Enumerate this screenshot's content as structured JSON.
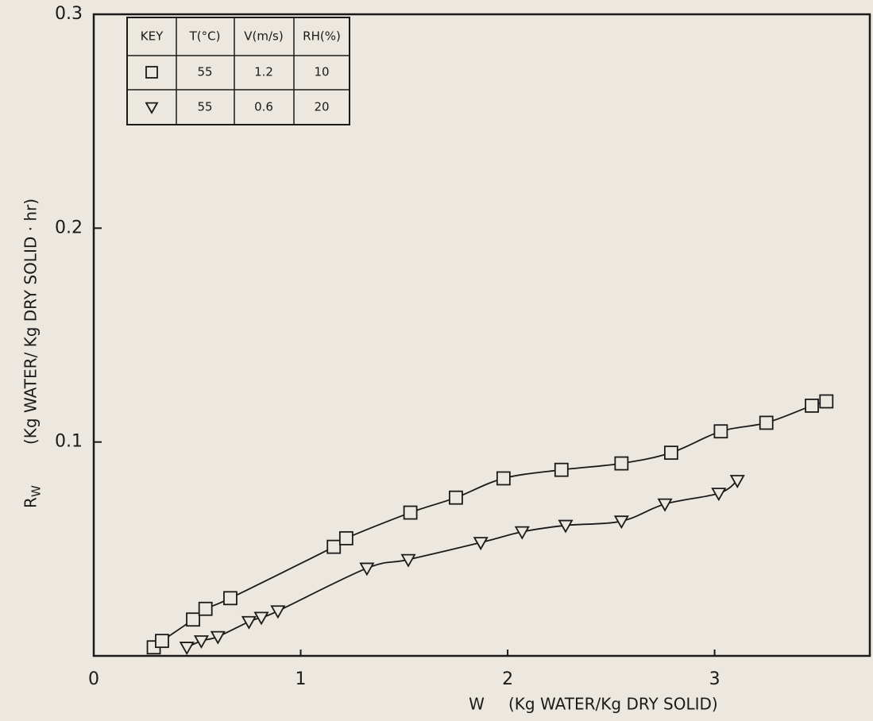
{
  "chart_data": {
    "type": "line",
    "x_symbol": "W",
    "x_label": "(Kg WATER/Kg DRY SOLID)",
    "y_symbol": "R",
    "y_symbol_sub": "W",
    "y_label": "(Kg WATER/ Kg DRY SOLID · hr)",
    "xlim": [
      0,
      3.75
    ],
    "xticks": [
      0,
      1,
      2,
      3
    ],
    "ylim": [
      0,
      0.3
    ],
    "yticks": [
      0.1,
      0.2,
      0.3
    ],
    "grid": false,
    "series": [
      {
        "marker": "square",
        "color": "#1a1a1a",
        "x": [
          0.29,
          0.33,
          0.48,
          0.54,
          0.66,
          1.16,
          1.22,
          1.53,
          1.75,
          1.98,
          2.26,
          2.55,
          2.79,
          3.03,
          3.25,
          3.47,
          3.54
        ],
        "values": [
          0.004,
          0.007,
          0.017,
          0.022,
          0.027,
          0.051,
          0.055,
          0.067,
          0.074,
          0.083,
          0.087,
          0.09,
          0.095,
          0.105,
          0.109,
          0.117,
          0.119
        ]
      },
      {
        "marker": "triangle",
        "color": "#1a1a1a",
        "x": [
          0.45,
          0.52,
          0.6,
          0.75,
          0.81,
          0.89,
          1.32,
          1.52,
          1.87,
          2.07,
          2.28,
          2.55,
          2.76,
          3.02,
          3.11
        ],
        "values": [
          0.004,
          0.007,
          0.009,
          0.016,
          0.018,
          0.021,
          0.041,
          0.045,
          0.053,
          0.058,
          0.061,
          0.063,
          0.071,
          0.076,
          0.082
        ]
      }
    ],
    "legend_table": {
      "headers": [
        "KEY",
        "T(°C)",
        "V(m/s)",
        "RH(%)"
      ],
      "rows": [
        [
          "55",
          "1.2",
          "10"
        ],
        [
          "55",
          "0.6",
          "20"
        ]
      ]
    }
  }
}
